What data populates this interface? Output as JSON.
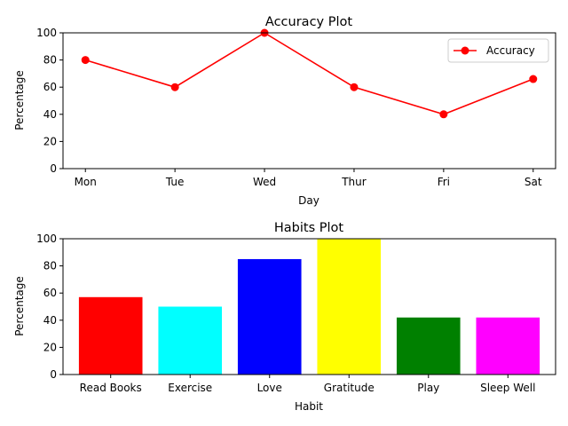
{
  "chart_data": [
    {
      "type": "line",
      "title": "Accuracy Plot",
      "xlabel": "Day",
      "ylabel": "Percentage",
      "categories": [
        "Mon",
        "Tue",
        "Wed",
        "Thur",
        "Fri",
        "Sat"
      ],
      "series": [
        {
          "name": "Accuracy",
          "values": [
            80,
            60,
            100,
            60,
            40,
            66
          ],
          "color": "#ff0000"
        }
      ],
      "ylim": [
        0,
        100
      ],
      "yticks": [
        0,
        20,
        40,
        60,
        80,
        100
      ],
      "grid": false,
      "legend": "top-right"
    },
    {
      "type": "bar",
      "title": "Habits Plot",
      "xlabel": "Habit",
      "ylabel": "Percentage",
      "categories": [
        "Read Books",
        "Exercise",
        "Love",
        "Gratitude",
        "Play",
        "Sleep Well"
      ],
      "values": [
        57,
        50,
        85,
        100,
        42,
        42
      ],
      "colors": [
        "#ff0000",
        "#00ffff",
        "#0000ff",
        "#ffff00",
        "#008000",
        "#ff00ff"
      ],
      "ylim": [
        0,
        100
      ],
      "yticks": [
        0,
        20,
        40,
        60,
        80,
        100
      ],
      "grid": false
    }
  ]
}
